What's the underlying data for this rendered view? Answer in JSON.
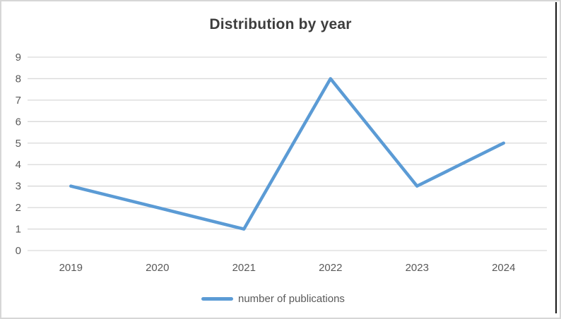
{
  "window": {
    "border_color": "#d6d6d6",
    "right_edge_line_color": "#161616",
    "background_color": "#ffffff"
  },
  "chart_data": {
    "type": "line",
    "title": "Distribution by year",
    "title_color": "#3d3d3d",
    "x": [
      "2019",
      "2020",
      "2021",
      "2022",
      "2023",
      "2024"
    ],
    "series": [
      {
        "name": "number of publications",
        "values": [
          3,
          2,
          1,
          8,
          3,
          5
        ],
        "color": "#5B9BD5"
      }
    ],
    "xlabel": "",
    "ylabel": "",
    "ylim": [
      0,
      9
    ],
    "ytick_step": 1,
    "yticks": [
      0,
      1,
      2,
      3,
      4,
      5,
      6,
      7,
      8,
      9
    ],
    "grid": "horizontal",
    "gridline_color": "#d9d9d9",
    "axis_label_color": "#595959",
    "legend_position": "bottom"
  },
  "legend": {
    "label": "number of publications",
    "swatch_color": "#5B9BD5"
  }
}
